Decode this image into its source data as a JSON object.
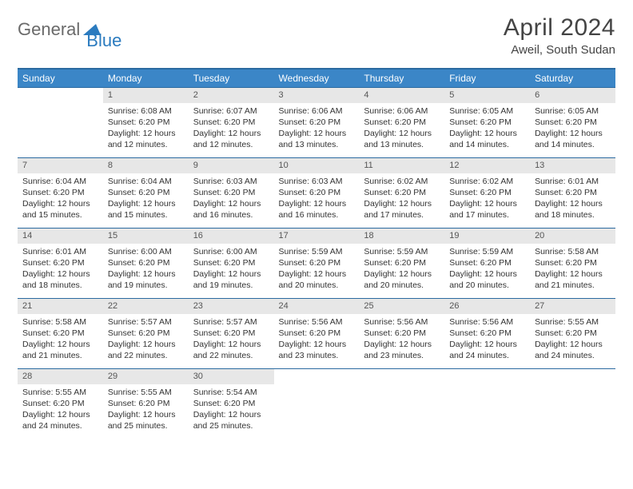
{
  "logo": {
    "part1": "General",
    "part2": "Blue"
  },
  "title": "April 2024",
  "location": "Aweil, South Sudan",
  "colors": {
    "header_bg": "#3b86c7",
    "header_border": "#2b6aa0",
    "daynum_bg": "#e7e7e7",
    "brand_gray": "#6a6a6a",
    "brand_blue": "#2b7bbf"
  },
  "weekdays": [
    "Sunday",
    "Monday",
    "Tuesday",
    "Wednesday",
    "Thursday",
    "Friday",
    "Saturday"
  ],
  "weeks": [
    [
      null,
      {
        "n": "1",
        "sr": "6:08 AM",
        "ss": "6:20 PM",
        "dl": "12 hours and 12 minutes."
      },
      {
        "n": "2",
        "sr": "6:07 AM",
        "ss": "6:20 PM",
        "dl": "12 hours and 12 minutes."
      },
      {
        "n": "3",
        "sr": "6:06 AM",
        "ss": "6:20 PM",
        "dl": "12 hours and 13 minutes."
      },
      {
        "n": "4",
        "sr": "6:06 AM",
        "ss": "6:20 PM",
        "dl": "12 hours and 13 minutes."
      },
      {
        "n": "5",
        "sr": "6:05 AM",
        "ss": "6:20 PM",
        "dl": "12 hours and 14 minutes."
      },
      {
        "n": "6",
        "sr": "6:05 AM",
        "ss": "6:20 PM",
        "dl": "12 hours and 14 minutes."
      }
    ],
    [
      {
        "n": "7",
        "sr": "6:04 AM",
        "ss": "6:20 PM",
        "dl": "12 hours and 15 minutes."
      },
      {
        "n": "8",
        "sr": "6:04 AM",
        "ss": "6:20 PM",
        "dl": "12 hours and 15 minutes."
      },
      {
        "n": "9",
        "sr": "6:03 AM",
        "ss": "6:20 PM",
        "dl": "12 hours and 16 minutes."
      },
      {
        "n": "10",
        "sr": "6:03 AM",
        "ss": "6:20 PM",
        "dl": "12 hours and 16 minutes."
      },
      {
        "n": "11",
        "sr": "6:02 AM",
        "ss": "6:20 PM",
        "dl": "12 hours and 17 minutes."
      },
      {
        "n": "12",
        "sr": "6:02 AM",
        "ss": "6:20 PM",
        "dl": "12 hours and 17 minutes."
      },
      {
        "n": "13",
        "sr": "6:01 AM",
        "ss": "6:20 PM",
        "dl": "12 hours and 18 minutes."
      }
    ],
    [
      {
        "n": "14",
        "sr": "6:01 AM",
        "ss": "6:20 PM",
        "dl": "12 hours and 18 minutes."
      },
      {
        "n": "15",
        "sr": "6:00 AM",
        "ss": "6:20 PM",
        "dl": "12 hours and 19 minutes."
      },
      {
        "n": "16",
        "sr": "6:00 AM",
        "ss": "6:20 PM",
        "dl": "12 hours and 19 minutes."
      },
      {
        "n": "17",
        "sr": "5:59 AM",
        "ss": "6:20 PM",
        "dl": "12 hours and 20 minutes."
      },
      {
        "n": "18",
        "sr": "5:59 AM",
        "ss": "6:20 PM",
        "dl": "12 hours and 20 minutes."
      },
      {
        "n": "19",
        "sr": "5:59 AM",
        "ss": "6:20 PM",
        "dl": "12 hours and 20 minutes."
      },
      {
        "n": "20",
        "sr": "5:58 AM",
        "ss": "6:20 PM",
        "dl": "12 hours and 21 minutes."
      }
    ],
    [
      {
        "n": "21",
        "sr": "5:58 AM",
        "ss": "6:20 PM",
        "dl": "12 hours and 21 minutes."
      },
      {
        "n": "22",
        "sr": "5:57 AM",
        "ss": "6:20 PM",
        "dl": "12 hours and 22 minutes."
      },
      {
        "n": "23",
        "sr": "5:57 AM",
        "ss": "6:20 PM",
        "dl": "12 hours and 22 minutes."
      },
      {
        "n": "24",
        "sr": "5:56 AM",
        "ss": "6:20 PM",
        "dl": "12 hours and 23 minutes."
      },
      {
        "n": "25",
        "sr": "5:56 AM",
        "ss": "6:20 PM",
        "dl": "12 hours and 23 minutes."
      },
      {
        "n": "26",
        "sr": "5:56 AM",
        "ss": "6:20 PM",
        "dl": "12 hours and 24 minutes."
      },
      {
        "n": "27",
        "sr": "5:55 AM",
        "ss": "6:20 PM",
        "dl": "12 hours and 24 minutes."
      }
    ],
    [
      {
        "n": "28",
        "sr": "5:55 AM",
        "ss": "6:20 PM",
        "dl": "12 hours and 24 minutes."
      },
      {
        "n": "29",
        "sr": "5:55 AM",
        "ss": "6:20 PM",
        "dl": "12 hours and 25 minutes."
      },
      {
        "n": "30",
        "sr": "5:54 AM",
        "ss": "6:20 PM",
        "dl": "12 hours and 25 minutes."
      },
      null,
      null,
      null,
      null
    ]
  ],
  "labels": {
    "sunrise": "Sunrise:",
    "sunset": "Sunset:",
    "daylight": "Daylight:"
  }
}
